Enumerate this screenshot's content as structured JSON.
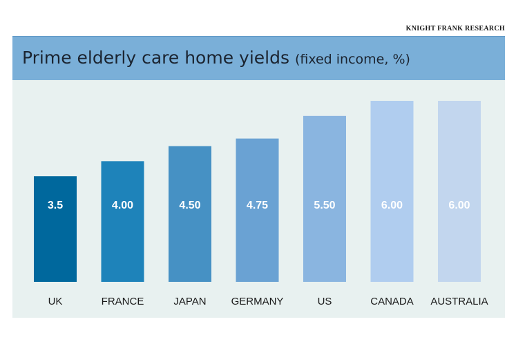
{
  "source": "KNIGHT FRANK RESEARCH",
  "chart_data": {
    "type": "bar",
    "title": "Prime elderly care home yields",
    "subtitle": "(fixed income, %)",
    "categories": [
      "UK",
      "FRANCE",
      "JAPAN",
      "GERMANY",
      "US",
      "CANADA",
      "AUSTRALIA"
    ],
    "values": [
      3.5,
      4.0,
      4.5,
      4.75,
      5.5,
      6.0,
      6.0
    ],
    "value_labels": [
      "3.5",
      "4.00",
      "4.50",
      "4.75",
      "5.50",
      "6.00",
      "6.00"
    ],
    "colors": [
      "#00689d",
      "#1e83ba",
      "#4691c4",
      "#6aa2d3",
      "#8ab5e0",
      "#b0cdef",
      "#c2d6ee"
    ],
    "ylim": [
      0,
      6
    ],
    "grid": false,
    "legend": "none",
    "background": "#e8f1f0",
    "title_band_color": "#7aafd8"
  }
}
